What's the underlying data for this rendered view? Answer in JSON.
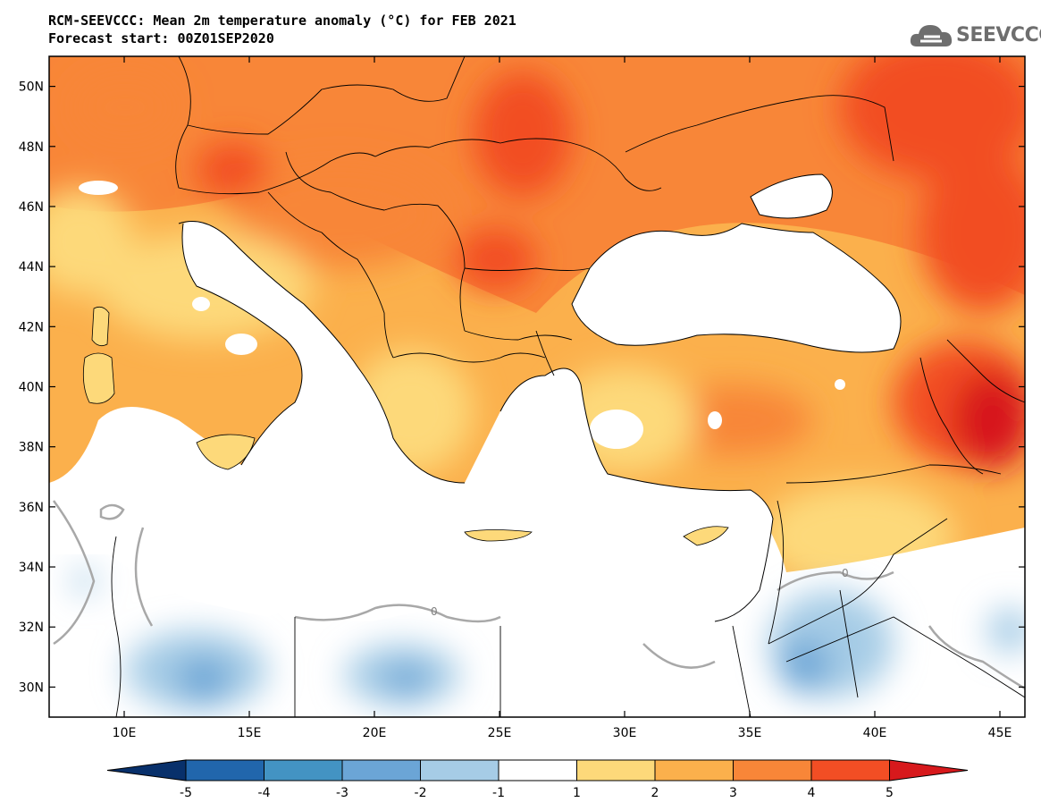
{
  "title": {
    "line1": "RCM-SEEVCCC: Mean 2m temperature anomaly (°C) for FEB 2021",
    "line2": "Forecast start: 00Z01SEP2020"
  },
  "logo": {
    "text": "SEEVCCC"
  },
  "map": {
    "lon_range": [
      7,
      46
    ],
    "lat_range": [
      29,
      51
    ],
    "lat_ticks": [
      {
        "value": 50,
        "label": "50N"
      },
      {
        "value": 48,
        "label": "48N"
      },
      {
        "value": 46,
        "label": "46N"
      },
      {
        "value": 44,
        "label": "44N"
      },
      {
        "value": 42,
        "label": "42N"
      },
      {
        "value": 40,
        "label": "40N"
      },
      {
        "value": 38,
        "label": "38N"
      },
      {
        "value": 36,
        "label": "36N"
      },
      {
        "value": 34,
        "label": "34N"
      },
      {
        "value": 32,
        "label": "32N"
      },
      {
        "value": 30,
        "label": "30N"
      }
    ],
    "lon_ticks": [
      {
        "value": 10,
        "label": "10E"
      },
      {
        "value": 15,
        "label": "15E"
      },
      {
        "value": 20,
        "label": "20E"
      },
      {
        "value": 25,
        "label": "25E"
      },
      {
        "value": 30,
        "label": "30E"
      },
      {
        "value": 35,
        "label": "35E"
      },
      {
        "value": 40,
        "label": "40E"
      },
      {
        "value": 45,
        "label": "45E"
      }
    ],
    "contour_zero_label": "0"
  },
  "colorbar": {
    "labels": [
      "-5",
      "-4",
      "-3",
      "-2",
      "-1",
      "1",
      "2",
      "3",
      "4",
      "5"
    ],
    "colors": [
      "#08306b",
      "#2166ac",
      "#4393c3",
      "#6ba5d6",
      "#a6cce6",
      "#ffffff",
      "#fdd97a",
      "#fbb04c",
      "#f88638",
      "#f24e24",
      "#d7191c"
    ]
  }
}
